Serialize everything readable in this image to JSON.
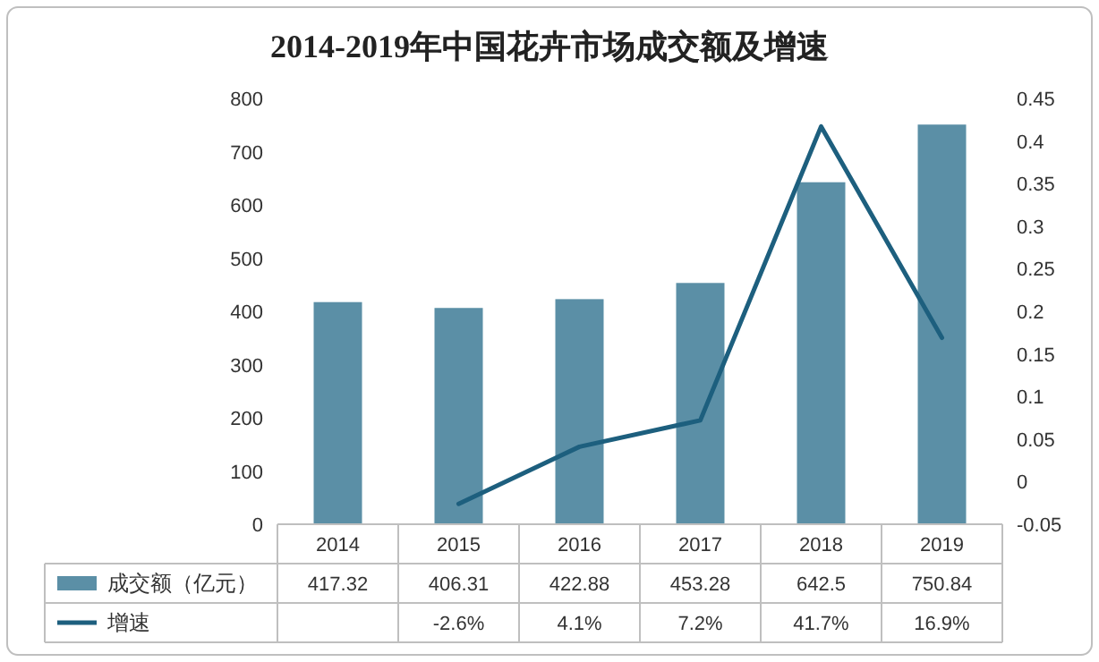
{
  "chart_data": {
    "type": "bar",
    "title": "2014-2019年中国花卉市场成交额及增速",
    "categories": [
      "2014",
      "2015",
      "2016",
      "2017",
      "2018",
      "2019"
    ],
    "series": [
      {
        "name": "成交额（亿元）",
        "color": "#5b8fa6",
        "values": [
          417.32,
          406.31,
          422.88,
          453.28,
          642.5,
          750.84
        ],
        "value_labels": [
          "417.32",
          "406.31",
          "422.88",
          "453.28",
          "642.5",
          "750.84"
        ]
      },
      {
        "name": "增速",
        "type": "line",
        "axis": "y2",
        "color": "#1d5f7e",
        "values": [
          null,
          -0.026,
          0.041,
          0.072,
          0.417,
          0.169
        ],
        "value_labels": [
          null,
          "-2.6%",
          "4.1%",
          "7.2%",
          "41.7%",
          "16.9%"
        ]
      }
    ],
    "ylim": [
      0,
      800
    ],
    "yticks": [
      0,
      100,
      200,
      300,
      400,
      500,
      600,
      700,
      800
    ],
    "y2lim": [
      -0.05,
      0.45
    ],
    "y2ticks": [
      -0.05,
      0,
      0.05,
      0.1,
      0.15,
      0.2,
      0.25,
      0.3,
      0.35,
      0.4,
      0.45
    ],
    "legend": "bottom"
  }
}
